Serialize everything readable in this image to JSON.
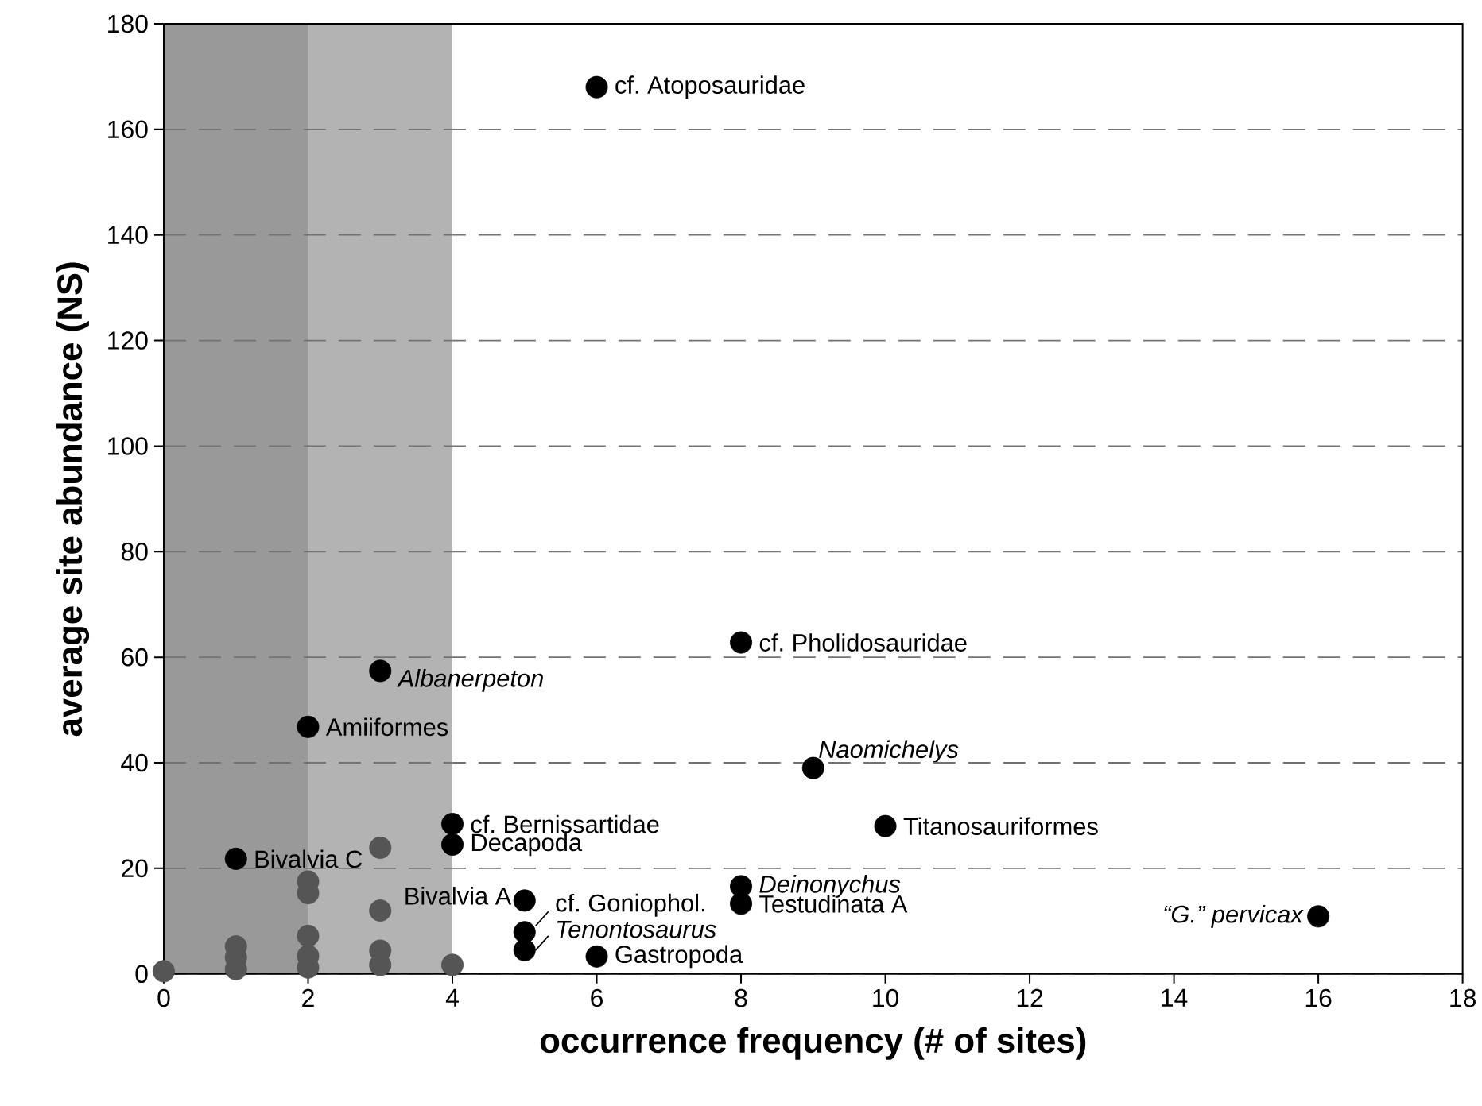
{
  "chart_data": {
    "type": "scatter",
    "xlabel": "occurrence frequency (# of sites)",
    "ylabel": "average site abundance (NS)",
    "xlim": [
      0,
      18
    ],
    "xticks": [
      0,
      2,
      4,
      6,
      8,
      10,
      12,
      14,
      16,
      18
    ],
    "ylim": [
      0,
      180
    ],
    "yticks": [
      0,
      20,
      40,
      60,
      80,
      100,
      120,
      140,
      160,
      180
    ],
    "grid": "y",
    "marker": "circle",
    "bands": [
      {
        "axis": "x",
        "from": 0,
        "to": 2,
        "color": "#999999"
      },
      {
        "axis": "x",
        "from": 2,
        "to": 4,
        "color": "#b3b3b3"
      }
    ],
    "series": [
      {
        "color": "#555555",
        "x": [
          0,
          1,
          1,
          1,
          2,
          2,
          2,
          2,
          2,
          3,
          3,
          3,
          3,
          4
        ],
        "values": [
          0.5,
          5.2,
          3.1,
          0.9,
          17.5,
          15.3,
          7.2,
          3.4,
          1.2,
          23.9,
          12,
          4.4,
          1.7,
          1.7
        ]
      },
      {
        "color": "#000000",
        "x": [
          6,
          8,
          3,
          2,
          9,
          4,
          4,
          10,
          1,
          8,
          8,
          16,
          5,
          5,
          5,
          6
        ],
        "values": [
          168,
          62.8,
          57.4,
          46.8,
          39,
          28.4,
          24.5,
          28,
          21.8,
          16.6,
          13.3,
          10.9,
          13.9,
          7.9,
          4.5,
          3.3
        ]
      }
    ],
    "annotations": [
      {
        "text": "cf. Atoposauridae",
        "x": 6,
        "y": 168
      },
      {
        "text": "cf. Pholidosauridae",
        "x": 8,
        "y": 62.8
      },
      {
        "text": "*Albanerpeton*",
        "x": 3,
        "y": 57.4
      },
      {
        "text": "Amiiformes",
        "x": 2,
        "y": 46.8
      },
      {
        "text": "*Naomichelys*",
        "x": 9,
        "y": 39
      },
      {
        "text": "cf. Bernissartidae",
        "x": 4,
        "y": 28.4
      },
      {
        "text": "Decapoda",
        "x": 4,
        "y": 24.5
      },
      {
        "text": "Titanosauriformes",
        "x": 10,
        "y": 28
      },
      {
        "text": "Bivalvia C",
        "x": 1,
        "y": 21.8
      },
      {
        "text": "*Deinonychus*",
        "x": 8,
        "y": 16.6
      },
      {
        "text": "Testudinata A",
        "x": 8,
        "y": 13.3
      },
      {
        "text": "*“G.” pervicax*",
        "x": 16,
        "y": 10.9
      },
      {
        "text": "Bivalvia A",
        "x": 5,
        "y": 13.9
      },
      {
        "text": "cf. Goniophol.",
        "x": 5,
        "y": 7.9
      },
      {
        "text": "*Tenontosaurus*",
        "x": 5,
        "y": 4.5
      },
      {
        "text": "Gastropoda",
        "x": 6,
        "y": 3.3
      }
    ]
  }
}
